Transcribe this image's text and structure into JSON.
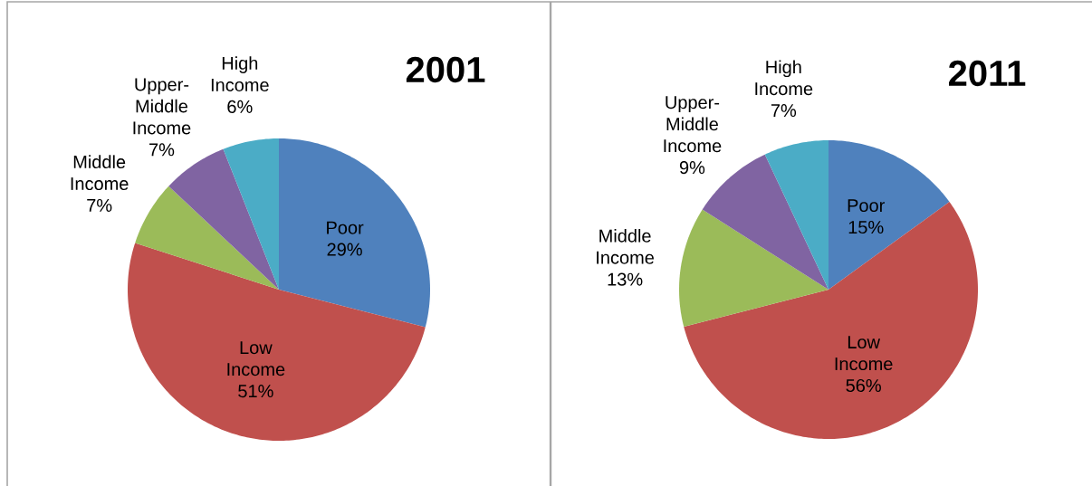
{
  "chart_data": [
    {
      "type": "pie",
      "title": "2001",
      "categories": [
        "Poor",
        "Low Income",
        "Middle Income",
        "Upper-Middle Income",
        "High Income"
      ],
      "values": [
        29,
        51,
        7,
        7,
        6
      ],
      "value_labels": [
        "29%",
        "51%",
        "7%",
        "7%",
        "6%"
      ],
      "colors": [
        "#4f81bd",
        "#c0504d",
        "#9bbb59",
        "#8064a2",
        "#4bacc6"
      ]
    },
    {
      "type": "pie",
      "title": "2011",
      "categories": [
        "Poor",
        "Low Income",
        "Middle Income",
        "Upper-Middle Income",
        "High Income"
      ],
      "values": [
        15,
        56,
        13,
        9,
        7
      ],
      "value_labels": [
        "15%",
        "56%",
        "13%",
        "9%",
        "7%"
      ],
      "colors": [
        "#4f81bd",
        "#c0504d",
        "#9bbb59",
        "#8064a2",
        "#4bacc6"
      ]
    }
  ]
}
